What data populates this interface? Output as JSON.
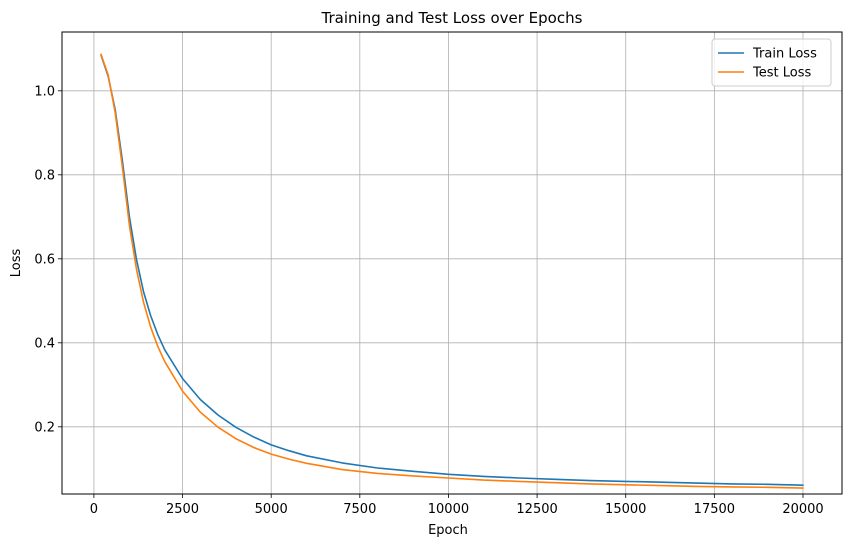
{
  "chart_data": {
    "type": "line",
    "title": "Training and Test Loss over Epochs",
    "xlabel": "Epoch",
    "ylabel": "Loss",
    "xlim": [
      -900,
      21100
    ],
    "ylim": [
      0.04,
      1.14
    ],
    "xticks": [
      0,
      2500,
      5000,
      7500,
      10000,
      12500,
      15000,
      17500,
      20000
    ],
    "yticks": [
      0.2,
      0.4,
      0.6,
      0.8,
      1.0
    ],
    "ytick_labels": [
      "0.2",
      "0.4",
      "0.6",
      "0.8",
      "1.0"
    ],
    "grid": true,
    "legend_position": "top-right",
    "x": [
      200,
      400,
      600,
      800,
      1000,
      1200,
      1400,
      1600,
      1800,
      2000,
      2500,
      3000,
      3500,
      4000,
      4500,
      5000,
      5500,
      6000,
      7000,
      8000,
      9000,
      10000,
      11000,
      12000,
      13000,
      14000,
      15000,
      16000,
      17000,
      18000,
      19000,
      20000
    ],
    "series": [
      {
        "name": "Train Loss",
        "color": "#1f77b4",
        "values": [
          1.085,
          1.035,
          0.955,
          0.835,
          0.7,
          0.598,
          0.522,
          0.465,
          0.42,
          0.383,
          0.315,
          0.265,
          0.228,
          0.199,
          0.176,
          0.157,
          0.143,
          0.131,
          0.114,
          0.102,
          0.094,
          0.087,
          0.082,
          0.078,
          0.075,
          0.072,
          0.07,
          0.068,
          0.066,
          0.064,
          0.063,
          0.061
        ]
      },
      {
        "name": "Test Loss",
        "color": "#ff7f0e",
        "values": [
          1.087,
          1.038,
          0.948,
          0.82,
          0.68,
          0.575,
          0.497,
          0.438,
          0.392,
          0.355,
          0.285,
          0.235,
          0.199,
          0.172,
          0.151,
          0.135,
          0.123,
          0.113,
          0.098,
          0.089,
          0.083,
          0.078,
          0.073,
          0.07,
          0.067,
          0.064,
          0.062,
          0.06,
          0.058,
          0.057,
          0.056,
          0.054
        ]
      }
    ]
  }
}
